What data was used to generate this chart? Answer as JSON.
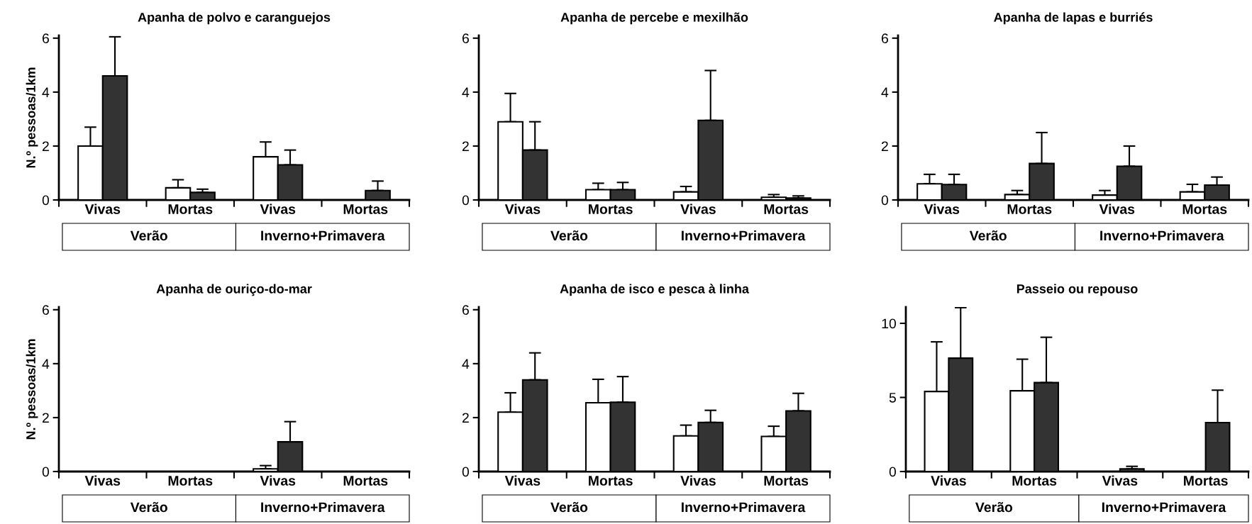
{
  "chart_data": [
    {
      "type": "bar",
      "title": "Apanha de polvo e caranguejos",
      "ylabel": "N.º pessoas/1km",
      "categories": [
        "Vivas",
        "Mortas",
        "Vivas",
        "Mortas"
      ],
      "ylim": [
        0,
        6.1
      ],
      "yticks": [
        0,
        2,
        4,
        6
      ],
      "annotations": [
        "Verão",
        "Inverno+Primavera"
      ],
      "series": [
        {
          "color": "#ffffff",
          "values": [
            2.0,
            0.45,
            1.6,
            null
          ],
          "errors": [
            [
              2.0,
              2.7
            ],
            [
              0.45,
              0.75
            ],
            [
              1.6,
              2.15
            ],
            null
          ]
        },
        {
          "color": "#333333",
          "values": [
            4.6,
            0.28,
            1.3,
            0.35
          ],
          "errors": [
            [
              4.6,
              6.05
            ],
            [
              0.28,
              0.4
            ],
            [
              1.3,
              1.85
            ],
            [
              0.35,
              0.7
            ]
          ]
        }
      ]
    },
    {
      "type": "bar",
      "title": "Apanha de percebe e mexilhão",
      "categories": [
        "Vivas",
        "Mortas",
        "Vivas",
        "Mortas"
      ],
      "ylim": [
        0,
        6.1
      ],
      "yticks": [
        0,
        2,
        4,
        6
      ],
      "annotations": [
        "Verão",
        "Inverno+Primavera"
      ],
      "series": [
        {
          "color": "#ffffff",
          "values": [
            2.9,
            0.38,
            0.3,
            0.1
          ],
          "errors": [
            [
              2.9,
              3.95
            ],
            [
              0.38,
              0.62
            ],
            [
              0.3,
              0.5
            ],
            [
              0.1,
              0.2
            ]
          ]
        },
        {
          "color": "#333333",
          "values": [
            1.85,
            0.38,
            2.95,
            0.07
          ],
          "errors": [
            [
              1.85,
              2.9
            ],
            [
              0.38,
              0.65
            ],
            [
              2.95,
              4.8
            ],
            [
              0.07,
              0.15
            ]
          ]
        }
      ]
    },
    {
      "type": "bar",
      "title": "Apanha de lapas e burriés",
      "categories": [
        "Vivas",
        "Mortas",
        "Vivas",
        "Mortas"
      ],
      "ylim": [
        0,
        6.1
      ],
      "yticks": [
        0,
        2,
        4,
        6
      ],
      "annotations": [
        "Verão",
        "Inverno+Primavera"
      ],
      "series": [
        {
          "color": "#ffffff",
          "values": [
            0.6,
            0.2,
            0.18,
            0.3
          ],
          "errors": [
            [
              0.6,
              0.95
            ],
            [
              0.2,
              0.35
            ],
            [
              0.18,
              0.35
            ],
            [
              0.3,
              0.58
            ]
          ]
        },
        {
          "color": "#333333",
          "values": [
            0.57,
            1.35,
            1.25,
            0.55
          ],
          "errors": [
            [
              0.57,
              0.95
            ],
            [
              1.35,
              2.5
            ],
            [
              1.25,
              2.0
            ],
            [
              0.55,
              0.85
            ]
          ]
        }
      ]
    },
    {
      "type": "bar",
      "title": "Apanha de ouriço-do-mar",
      "ylabel": "N.º pessoas/1km",
      "categories": [
        "Vivas",
        "Mortas",
        "Vivas",
        "Mortas"
      ],
      "ylim": [
        0,
        6.1
      ],
      "yticks": [
        0,
        2,
        4,
        6
      ],
      "annotations": [
        "Verão",
        "Inverno+Primavera"
      ],
      "series": [
        {
          "color": "#ffffff",
          "values": [
            null,
            null,
            0.1,
            null
          ],
          "errors": [
            null,
            null,
            [
              0.1,
              0.22
            ],
            null
          ]
        },
        {
          "color": "#333333",
          "values": [
            null,
            null,
            1.1,
            null
          ],
          "errors": [
            null,
            null,
            [
              1.1,
              1.85
            ],
            null
          ]
        }
      ]
    },
    {
      "type": "bar",
      "title": "Apanha de isco e pesca à linha",
      "categories": [
        "Vivas",
        "Mortas",
        "Vivas",
        "Mortas"
      ],
      "ylim": [
        0,
        6.1
      ],
      "yticks": [
        0,
        2,
        4,
        6
      ],
      "annotations": [
        "Verão",
        "Inverno+Primavera"
      ],
      "series": [
        {
          "color": "#ffffff",
          "values": [
            2.2,
            2.55,
            1.32,
            1.3
          ],
          "errors": [
            [
              2.2,
              2.92
            ],
            [
              2.55,
              3.42
            ],
            [
              1.32,
              1.72
            ],
            [
              1.3,
              1.68
            ]
          ]
        },
        {
          "color": "#333333",
          "values": [
            3.4,
            2.57,
            1.82,
            2.25
          ],
          "errors": [
            [
              3.4,
              4.4
            ],
            [
              2.57,
              3.52
            ],
            [
              1.82,
              2.27
            ],
            [
              2.25,
              2.9
            ]
          ]
        }
      ]
    },
    {
      "type": "bar",
      "title": "Passeio ou repouso",
      "categories": [
        "Vivas",
        "Mortas",
        "Vivas",
        "Mortas"
      ],
      "ylim": [
        0,
        11.1
      ],
      "yticks": [
        0,
        5,
        10
      ],
      "annotations": [
        "Verão",
        "Inverno+Primavera"
      ],
      "series": [
        {
          "color": "#ffffff",
          "values": [
            5.4,
            5.45,
            null,
            null
          ],
          "errors": [
            [
              5.4,
              8.75
            ],
            [
              5.45,
              7.58
            ],
            null,
            null
          ]
        },
        {
          "color": "#333333",
          "values": [
            7.65,
            6.0,
            0.18,
            3.3
          ],
          "errors": [
            [
              7.65,
              11.06
            ],
            [
              6.0,
              9.06
            ],
            [
              0.18,
              0.35
            ],
            [
              3.3,
              5.49
            ]
          ]
        }
      ]
    }
  ]
}
